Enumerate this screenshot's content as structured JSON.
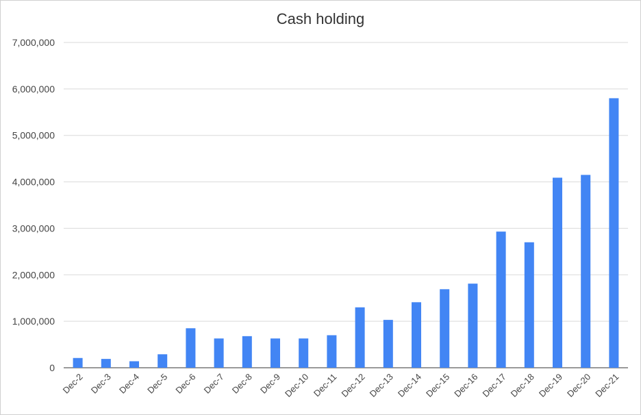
{
  "chart_data": {
    "type": "bar",
    "title": "Cash holding",
    "xlabel": "",
    "ylabel": "",
    "categories": [
      "Dec-2",
      "Dec-3",
      "Dec-4",
      "Dec-5",
      "Dec-6",
      "Dec-7",
      "Dec-8",
      "Dec-9",
      "Dec-10",
      "Dec-11",
      "Dec-12",
      "Dec-13",
      "Dec-14",
      "Dec-15",
      "Dec-16",
      "Dec-17",
      "Dec-18",
      "Dec-19",
      "Dec-20",
      "Dec-21"
    ],
    "values": [
      210000,
      190000,
      140000,
      290000,
      850000,
      630000,
      680000,
      630000,
      630000,
      700000,
      1300000,
      1030000,
      1410000,
      1690000,
      1810000,
      2930000,
      2700000,
      4090000,
      4150000,
      5800000
    ],
    "ylim": [
      0,
      7000000
    ],
    "yticks": [
      0,
      1000000,
      2000000,
      3000000,
      4000000,
      5000000,
      6000000,
      7000000
    ],
    "ytick_labels": [
      "0",
      "1,000,000",
      "2,000,000",
      "3,000,000",
      "4,000,000",
      "5,000,000",
      "6,000,000",
      "7,000,000"
    ],
    "grid": true,
    "legend": "none",
    "bar_color": "#4285f4"
  }
}
